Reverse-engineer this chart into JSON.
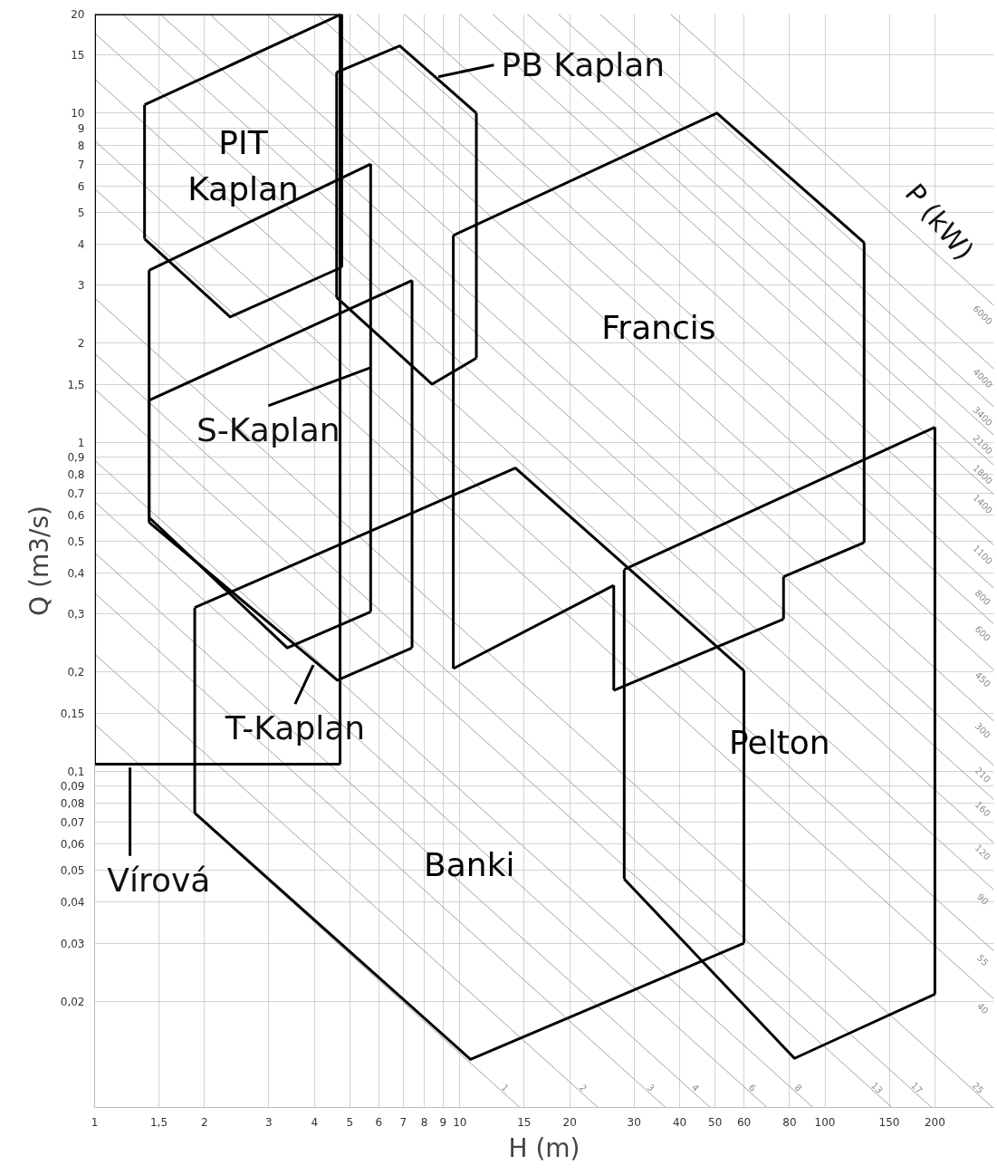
{
  "chart_data": {
    "type": "line",
    "log": "xy",
    "grid": true,
    "marker": "none",
    "line_style": "solid",
    "xlabel": "H (m)",
    "ylabel": "Q (m3/s)",
    "xlim": [
      1,
      290
    ],
    "ylim": [
      0.0095,
      20
    ],
    "xticks": [
      1,
      {
        "value": 1.5,
        "label": "1,5"
      },
      2,
      3,
      4,
      5,
      6,
      7,
      8,
      9,
      10,
      15,
      20,
      30,
      40,
      50,
      60,
      80,
      100,
      150,
      200
    ],
    "yticks": [
      20,
      15,
      10,
      9,
      8,
      7,
      6,
      5,
      4,
      3,
      2,
      {
        "value": 1.5,
        "label": "1,5"
      },
      1,
      {
        "value": 0.9,
        "label": "0,9"
      },
      {
        "value": 0.8,
        "label": "0,8"
      },
      {
        "value": 0.7,
        "label": "0,7"
      },
      {
        "value": 0.6,
        "label": "0,6"
      },
      {
        "value": 0.5,
        "label": "0,5"
      },
      {
        "value": 0.4,
        "label": "0,4"
      },
      {
        "value": 0.3,
        "label": "0,3"
      },
      {
        "value": 0.2,
        "label": "0,2"
      },
      {
        "value": 0.15,
        "label": "0,15"
      },
      {
        "value": 0.1,
        "label": "0,1"
      },
      {
        "value": 0.09,
        "label": "0,09"
      },
      {
        "value": 0.08,
        "label": "0,08"
      },
      {
        "value": 0.07,
        "label": "0,07"
      },
      {
        "value": 0.06,
        "label": "0,06"
      },
      {
        "value": 0.05,
        "label": "0,05"
      },
      {
        "value": 0.04,
        "label": "0,04"
      },
      {
        "value": 0.03,
        "label": "0,03"
      },
      {
        "value": 0.02,
        "label": "0,02"
      }
    ],
    "series": [
      {
        "name": "1",
        "color": "#8c8c8c",
        "x": [
          1,
          14.6
        ],
        "values": [
          0.139,
          0.0095
        ]
      },
      {
        "name": "2",
        "color": "#8c8c8c",
        "x": [
          1,
          23.9
        ],
        "values": [
          0.227,
          0.0095
        ]
      },
      {
        "name": "3",
        "color": "#8c8c8c",
        "x": [
          1,
          36.6
        ],
        "values": [
          0.348,
          0.0095
        ]
      },
      {
        "name": "4",
        "color": "#8c8c8c",
        "x": [
          1,
          48.5
        ],
        "values": [
          0.461,
          0.0095
        ]
      },
      {
        "name": "6",
        "color": "#8c8c8c",
        "x": [
          1,
          69.4
        ],
        "values": [
          0.659,
          0.0095
        ]
      },
      {
        "name": "8",
        "color": "#8c8c8c",
        "x": [
          1,
          92.7
        ],
        "values": [
          0.881,
          0.0095
        ]
      },
      {
        "name": "13",
        "color": "#8c8c8c",
        "x": [
          1,
          152.5
        ],
        "values": [
          1.45,
          0.0095
        ]
      },
      {
        "name": "17",
        "color": "#8c8c8c",
        "x": [
          1,
          196
        ],
        "values": [
          1.86,
          0.0095
        ]
      },
      {
        "name": "25",
        "color": "#8c8c8c",
        "x": [
          1,
          288
        ],
        "values": [
          2.74,
          0.0095
        ]
      },
      {
        "name": "40",
        "color": "#8c8c8c",
        "x": [
          1,
          290
        ],
        "values": [
          5.89,
          0.0203
        ]
      },
      {
        "name": "55",
        "color": "#8c8c8c",
        "x": [
          1,
          290
        ],
        "values": [
          8.24,
          0.0284
        ]
      },
      {
        "name": "90",
        "color": "#8c8c8c",
        "x": [
          1,
          290
        ],
        "values": [
          12.7,
          0.0436
        ]
      },
      {
        "name": "120",
        "color": "#8c8c8c",
        "x": [
          1,
          290
        ],
        "values": [
          17.5,
          0.0605
        ]
      },
      {
        "name": "160",
        "color": "#8c8c8c",
        "x": [
          1.19,
          290
        ],
        "values": [
          20,
          0.0819
        ]
      },
      {
        "name": "210",
        "color": "#8c8c8c",
        "x": [
          1.51,
          290
        ],
        "values": [
          20,
          0.104
        ]
      },
      {
        "name": "300",
        "color": "#8c8c8c",
        "x": [
          2.06,
          290
        ],
        "values": [
          20,
          0.142
        ]
      },
      {
        "name": "450",
        "color": "#8c8c8c",
        "x": [
          2.95,
          290
        ],
        "values": [
          20,
          0.203
        ]
      },
      {
        "name": "600",
        "color": "#8c8c8c",
        "x": [
          4.05,
          290
        ],
        "values": [
          20,
          0.28
        ]
      },
      {
        "name": "800",
        "color": "#8c8c8c",
        "x": [
          5.22,
          290
        ],
        "values": [
          20,
          0.36
        ]
      },
      {
        "name": "1100",
        "color": "#8c8c8c",
        "x": [
          7.05,
          290
        ],
        "values": [
          20,
          0.486
        ]
      },
      {
        "name": "1400",
        "color": "#8c8c8c",
        "x": [
          10.0,
          290
        ],
        "values": [
          20,
          0.693
        ]
      },
      {
        "name": "1800",
        "color": "#8c8c8c",
        "x": [
          12.3,
          290
        ],
        "values": [
          20,
          0.851
        ]
      },
      {
        "name": "2100",
        "color": "#8c8c8c",
        "x": [
          15.3,
          290
        ],
        "values": [
          20,
          1.05
        ]
      },
      {
        "name": "3400",
        "color": "#8c8c8c",
        "x": [
          18.6,
          290
        ],
        "values": [
          20,
          1.28
        ]
      },
      {
        "name": "4000",
        "color": "#8c8c8c",
        "x": [
          24.2,
          290
        ],
        "values": [
          20,
          1.67
        ]
      },
      {
        "name": "6000",
        "color": "#8c8c8c",
        "x": [
          37.7,
          290
        ],
        "values": [
          20,
          2.6
        ]
      },
      {
        "color": "#000000",
        "x": [
          1,
          4.7
        ],
        "values": [
          20,
          20
        ]
      },
      {
        "color": "#000000",
        "x": [
          1,
          4.7
        ],
        "values": [
          0.105,
          0.105
        ]
      },
      {
        "color": "#000000",
        "x": [
          1,
          1
        ],
        "values": [
          0.105,
          20
        ]
      },
      {
        "color": "#000000",
        "x": [
          4.7,
          4.7
        ],
        "values": [
          20,
          0.105
        ]
      },
      {
        "name": "PIT\nKaplan",
        "color": "#000000",
        "x": [
          1.37,
          4.75
        ],
        "values": [
          10.6,
          20
        ]
      },
      {
        "color": "#000000",
        "x": [
          1.37,
          2.35,
          4.75
        ],
        "values": [
          4.15,
          2.4,
          3.4
        ]
      },
      {
        "color": "#000000",
        "x": [
          1.37,
          1.37
        ],
        "values": [
          4.15,
          10.6
        ]
      },
      {
        "color": "#000000",
        "x": [
          4.75,
          4.75
        ],
        "values": [
          20,
          3.4
        ]
      },
      {
        "color": "#000000",
        "x": [
          4.6,
          6.85,
          11.1
        ],
        "values": [
          13.3,
          16,
          10
        ]
      },
      {
        "color": "#000000",
        "x": [
          4.6,
          8.4,
          11.1
        ],
        "values": [
          2.75,
          1.5,
          1.8
        ]
      },
      {
        "color": "#000000",
        "x": [
          4.6,
          4.6
        ],
        "values": [
          2.75,
          13.3
        ]
      },
      {
        "color": "#000000",
        "x": [
          11.1,
          11.1
        ],
        "values": [
          10,
          1.8
        ]
      },
      {
        "color": "#000000",
        "x": [
          1.41,
          5.7
        ],
        "values": [
          3.33,
          7.0
        ]
      },
      {
        "color": "#000000",
        "x": [
          1.41,
          3.37,
          5.7
        ],
        "values": [
          0.59,
          0.237,
          0.305
        ]
      },
      {
        "color": "#000000",
        "x": [
          1.41,
          1.41
        ],
        "values": [
          0.59,
          3.33
        ]
      },
      {
        "color": "#000000",
        "x": [
          5.7,
          5.7
        ],
        "values": [
          7.0,
          0.305
        ]
      },
      {
        "color": "#000000",
        "x": [
          1.41,
          7.4
        ],
        "values": [
          1.34,
          3.1
        ]
      },
      {
        "color": "#000000",
        "x": [
          1.41,
          4.62,
          7.4
        ],
        "values": [
          0.57,
          0.189,
          0.237
        ]
      },
      {
        "color": "#000000",
        "x": [
          1.41,
          1.41
        ],
        "values": [
          0.57,
          1.34
        ]
      },
      {
        "color": "#000000",
        "x": [
          7.4,
          7.4
        ],
        "values": [
          3.1,
          0.237
        ]
      },
      {
        "name": "Francis",
        "color": "#000000",
        "x": [
          9.6,
          50.6,
          128
        ],
        "values": [
          4.25,
          10,
          4.04
        ]
      },
      {
        "color": "#000000",
        "x": [
          128,
          128
        ],
        "values": [
          4.04,
          0.495
        ]
      },
      {
        "color": "#000000",
        "x": [
          9.6,
          26.4
        ],
        "values": [
          0.205,
          0.367
        ]
      },
      {
        "color": "#000000",
        "x": [
          26.4,
          77
        ],
        "values": [
          0.176,
          0.29
        ]
      },
      {
        "color": "#000000",
        "x": [
          77,
          128
        ],
        "values": [
          0.39,
          0.495
        ]
      },
      {
        "color": "#000000",
        "x": [
          9.6,
          9.6
        ],
        "values": [
          0.205,
          4.25
        ]
      },
      {
        "color": "#000000",
        "x": [
          26.4,
          26.4
        ],
        "values": [
          0.367,
          0.176
        ]
      },
      {
        "color": "#000000",
        "x": [
          77,
          77
        ],
        "values": [
          0.29,
          0.39
        ]
      },
      {
        "name": "Banki",
        "color": "#000000",
        "x": [
          1.88,
          10.7,
          60
        ],
        "values": [
          0.0746,
          0.0133,
          0.03
        ]
      },
      {
        "color": "#000000",
        "x": [
          60,
          60
        ],
        "values": [
          0.202,
          0.03
        ]
      },
      {
        "color": "#000000",
        "x": [
          1.88,
          14.2,
          60
        ],
        "values": [
          0.314,
          0.834,
          0.202
        ]
      },
      {
        "color": "#000000",
        "x": [
          1.88,
          1.88
        ],
        "values": [
          0.0746,
          0.314
        ]
      },
      {
        "name": "Pelton",
        "color": "#000000",
        "x": [
          28.2,
          200
        ],
        "values": [
          0.41,
          1.11
        ]
      },
      {
        "color": "#000000",
        "x": [
          28.2,
          82.5,
          200
        ],
        "values": [
          0.047,
          0.0134,
          0.021
        ]
      },
      {
        "color": "#000000",
        "x": [
          28.2,
          28.2
        ],
        "values": [
          0.047,
          0.41
        ]
      },
      {
        "color": "#000000",
        "x": [
          200,
          200
        ],
        "values": [
          1.11,
          0.021
        ]
      },
      {
        "color": "#000000",
        "x": [
          8.73,
          12.4
        ],
        "values": [
          12.9,
          14.0
        ]
      },
      {
        "color": "#000000",
        "x": [
          2.99,
          5.67
        ],
        "values": [
          1.29,
          1.68
        ]
      },
      {
        "color": "#000000",
        "x": [
          3.54,
          3.97
        ],
        "values": [
          0.16,
          0.21
        ]
      },
      {
        "color": "#000000",
        "x": [
          1.25,
          1.25
        ],
        "values": [
          0.1026,
          0.0553
        ]
      }
    ],
    "annotations": [
      {
        "text": "PB Kaplan",
        "x": 12.4,
        "y": 14.0
      },
      {
        "text": "S-Kaplan",
        "x": 2.99,
        "y": 1.29
      },
      {
        "text": "T-Kaplan",
        "x": 3.54,
        "y": 0.16
      },
      {
        "text": "Vírová",
        "x": 1.25,
        "y": 0.0553
      },
      "P (kW)"
    ]
  }
}
